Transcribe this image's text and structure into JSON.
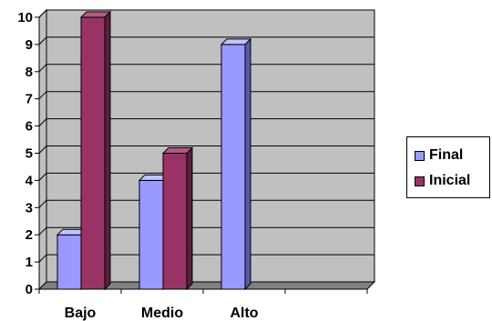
{
  "chart_data": {
    "type": "bar",
    "categories": [
      "Bajo",
      "Medio",
      "Alto",
      ""
    ],
    "series": [
      {
        "name": "Final",
        "values": [
          2,
          4,
          9,
          0
        ],
        "color": "#9999ff",
        "side": "#5a5aa8",
        "top": "#c2c2ff"
      },
      {
        "name": "Inicial",
        "values": [
          10,
          5,
          0,
          0
        ],
        "color": "#993366",
        "side": "#5c1f3d",
        "top": "#b05a84"
      }
    ],
    "ylim": [
      0,
      10
    ],
    "yticks": [
      "0",
      "1",
      "2",
      "3",
      "4",
      "5",
      "6",
      "7",
      "8",
      "9",
      "10"
    ],
    "title": "",
    "xlabel": "",
    "ylabel": "",
    "grid": true,
    "legend": "right",
    "colors": {
      "wall": "#c0c0c0",
      "floor": "#808080",
      "grid": "#000000"
    }
  }
}
